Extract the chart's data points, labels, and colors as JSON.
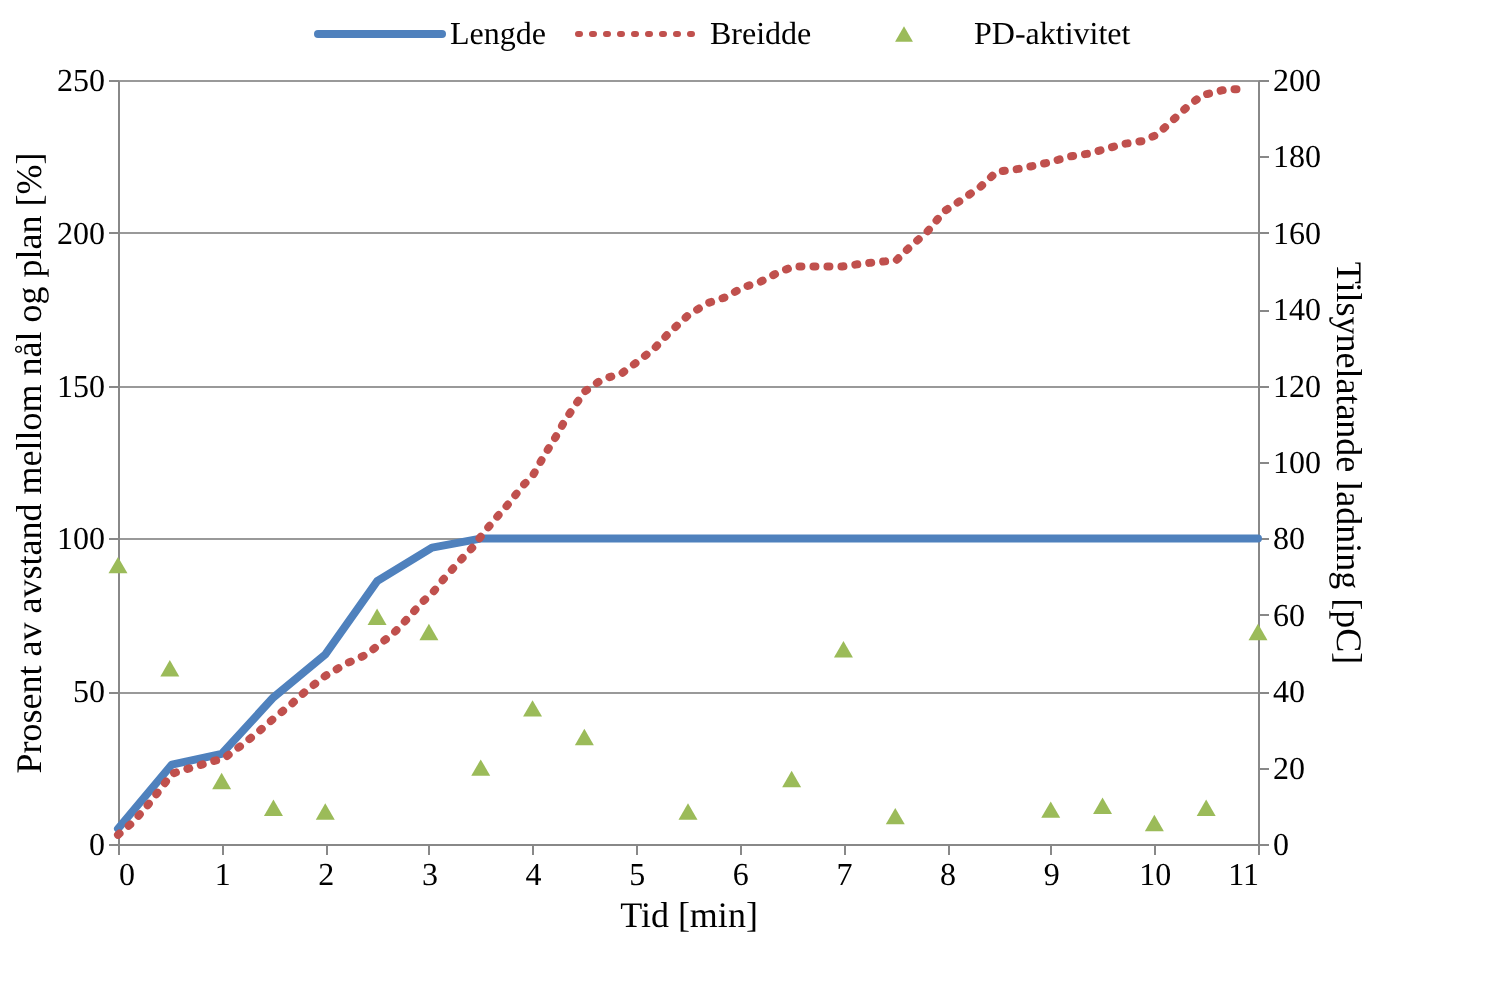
{
  "chart_data": {
    "type": "line",
    "xlabel": "Tid [min]",
    "ylabel": "Prosent av avstand mellom nål og plan [%]",
    "y2label": "Tilsynelatande ladning [pC]",
    "xlim": [
      0,
      11
    ],
    "xticks": [
      0,
      1,
      2,
      3,
      4,
      5,
      6,
      7,
      8,
      9,
      10,
      11
    ],
    "ylim": [
      0,
      250
    ],
    "yticks": [
      0,
      50,
      100,
      150,
      200,
      250
    ],
    "y2lim": [
      0,
      200
    ],
    "y2ticks": [
      0,
      20,
      40,
      60,
      80,
      100,
      120,
      140,
      160,
      180,
      200
    ],
    "grid": "y",
    "legend": "top",
    "series": [
      {
        "name": "Lengde",
        "color": "#4f81bd",
        "line_style": "solid",
        "x": [
          0,
          0.52,
          1.0,
          1.5,
          2.0,
          2.5,
          3.03,
          3.51,
          11
        ],
        "values": [
          5,
          26,
          29.5,
          48,
          62,
          86,
          97,
          100,
          100
        ]
      },
      {
        "name": "Breidde",
        "color": "#c0504d",
        "line_style": "dotted",
        "x": [
          0,
          0.14,
          0.27,
          0.41,
          0.52,
          0.71,
          0.91,
          1.02,
          1.18,
          1.33,
          1.5,
          1.68,
          1.81,
          2.0,
          2.2,
          2.4,
          2.51,
          2.66,
          2.8,
          2.93,
          3.03,
          3.15,
          3.28,
          3.42,
          3.51,
          3.63,
          3.76,
          3.9,
          4.01,
          4.11,
          4.22,
          4.32,
          4.44,
          4.5,
          4.67,
          4.86,
          5.02,
          5.17,
          5.31,
          5.5,
          5.69,
          5.87,
          6.02,
          6.2,
          6.37,
          6.52,
          6.72,
          6.99,
          7.2,
          7.51,
          7.66,
          7.8,
          7.97,
          8.15,
          8.32,
          8.48,
          8.71,
          8.98,
          9.19,
          9.38,
          9.69,
          9.88,
          10.02,
          10.15,
          10.31,
          10.46,
          10.7,
          10.9
        ],
        "values": [
          3,
          7,
          12,
          18,
          23,
          25,
          27,
          28,
          32,
          36,
          41,
          46,
          50,
          55,
          59,
          62,
          65,
          69,
          74,
          79,
          82,
          87,
          92,
          97,
          101,
          106,
          111,
          117,
          121,
          127,
          133,
          139,
          145,
          148,
          152,
          154,
          158,
          162,
          167,
          173,
          177,
          179,
          182,
          184,
          187,
          189,
          189,
          189,
          190,
          191,
          196,
          200,
          207,
          211,
          215,
          220,
          221,
          223,
          225,
          226,
          229,
          230,
          232,
          236,
          241,
          245,
          247,
          247
        ]
      },
      {
        "name": "PD-aktivitet",
        "type": "scatter",
        "axis": "y2",
        "marker": "triangle",
        "color": "#9bbb59",
        "x": [
          0,
          0.5,
          1.0,
          1.5,
          2.0,
          2.5,
          3.0,
          3.5,
          4.0,
          4.5,
          5.5,
          6.5,
          7.0,
          7.5,
          9.0,
          9.5,
          10.0,
          10.5,
          11
        ],
        "values": [
          73,
          46,
          16.5,
          9.5,
          8.5,
          59.5,
          55.5,
          20,
          35.5,
          28,
          8.5,
          17,
          51,
          7.3,
          9,
          10,
          5.5,
          9.5,
          55.5
        ]
      }
    ]
  }
}
